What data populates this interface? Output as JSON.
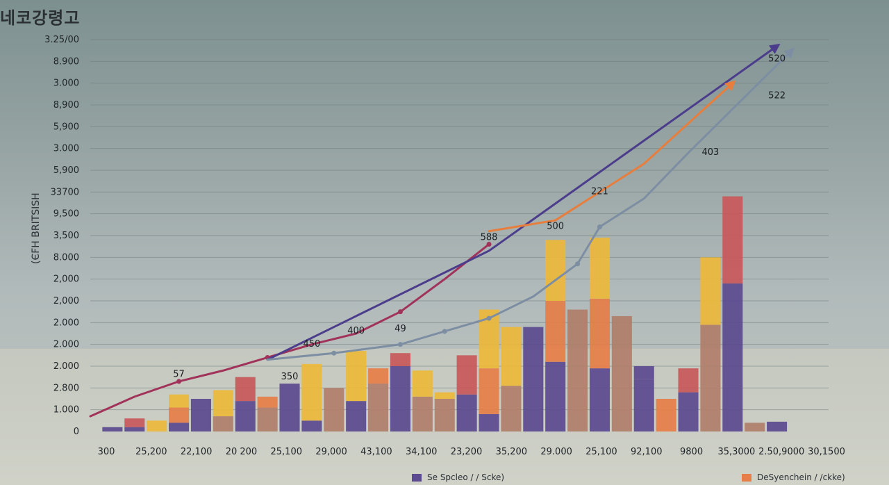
{
  "chart_data": {
    "type": "bar",
    "title": "네코강령고",
    "xlabel": "",
    "ylabel": "(ЄFH BRITSISH",
    "y_tick_labels": [
      "0",
      "1.000",
      "2.800",
      "2.000",
      "2.000",
      "2.000",
      "2,000",
      "2,000",
      "8.000",
      "3,500",
      "9,500",
      "33700",
      "5,900",
      "3.000",
      "5,900",
      "8,900",
      "3.000",
      "8.900",
      "3.25/00"
    ],
    "x_tick_labels": [
      "300",
      "25,200",
      "22,100",
      "20 200",
      "25,100",
      "29,000",
      "43,100",
      "34,100",
      "23,200",
      "35,200",
      "29.000",
      "25,100",
      "92,100",
      "9800",
      "35,3000",
      "2.50,9000",
      "30,1500"
    ],
    "ylim": [
      0,
      18
    ],
    "grid": true,
    "colors": {
      "purple": "#5b4a8f",
      "red": "#c8585a",
      "yellow": "#ecb83a",
      "orange": "#e57e48",
      "tan": "#b07e6a",
      "line_maroon": "#a13259",
      "line_indigo": "#4b3d8c",
      "line_orange": "#e77e3e",
      "line_grey": "#7d8ea3"
    },
    "bars": [
      {
        "x": 0.45,
        "segments": [
          {
            "c": "purple",
            "v": 0.2
          }
        ]
      },
      {
        "x": 0.9,
        "segments": [
          {
            "c": "purple",
            "v": 0.2
          },
          {
            "c": "red",
            "v": 0.4
          }
        ]
      },
      {
        "x": 1.35,
        "segments": [
          {
            "c": "yellow",
            "v": 0.5
          }
        ]
      },
      {
        "x": 1.8,
        "segments": [
          {
            "c": "purple",
            "v": 0.4
          },
          {
            "c": "orange",
            "v": 0.7
          },
          {
            "c": "yellow",
            "v": 0.6
          }
        ]
      },
      {
        "x": 2.25,
        "segments": [
          {
            "c": "purple",
            "v": 1.5
          }
        ]
      },
      {
        "x": 2.7,
        "segments": [
          {
            "c": "tan",
            "v": 0.7
          },
          {
            "c": "yellow",
            "v": 1.2
          }
        ]
      },
      {
        "x": 3.15,
        "segments": [
          {
            "c": "purple",
            "v": 1.4
          },
          {
            "c": "red",
            "v": 1.1
          }
        ]
      },
      {
        "x": 3.6,
        "segments": [
          {
            "c": "tan",
            "v": 1.1
          },
          {
            "c": "orange",
            "v": 0.5
          }
        ]
      },
      {
        "x": 4.05,
        "segments": [
          {
            "c": "purple",
            "v": 2.2
          }
        ]
      },
      {
        "x": 4.5,
        "segments": [
          {
            "c": "purple",
            "v": 0.5
          },
          {
            "c": "yellow",
            "v": 2.6
          }
        ]
      },
      {
        "x": 4.95,
        "segments": [
          {
            "c": "tan",
            "v": 2.0
          }
        ]
      },
      {
        "x": 5.4,
        "segments": [
          {
            "c": "purple",
            "v": 1.4
          },
          {
            "c": "yellow",
            "v": 2.3
          }
        ]
      },
      {
        "x": 5.85,
        "segments": [
          {
            "c": "tan",
            "v": 2.2
          },
          {
            "c": "orange",
            "v": 0.7
          }
        ]
      },
      {
        "x": 6.3,
        "segments": [
          {
            "c": "purple",
            "v": 3.0
          },
          {
            "c": "red",
            "v": 0.6
          }
        ]
      },
      {
        "x": 6.75,
        "segments": [
          {
            "c": "tan",
            "v": 1.6
          },
          {
            "c": "yellow",
            "v": 1.2
          }
        ]
      },
      {
        "x": 7.2,
        "segments": [
          {
            "c": "tan",
            "v": 1.5
          },
          {
            "c": "yellow",
            "v": 0.3
          }
        ]
      },
      {
        "x": 7.65,
        "segments": [
          {
            "c": "purple",
            "v": 1.7
          },
          {
            "c": "red",
            "v": 1.8
          }
        ]
      },
      {
        "x": 8.1,
        "segments": [
          {
            "c": "purple",
            "v": 0.8
          },
          {
            "c": "orange",
            "v": 2.1
          },
          {
            "c": "yellow",
            "v": 2.7
          }
        ]
      },
      {
        "x": 8.55,
        "segments": [
          {
            "c": "tan",
            "v": 2.1
          },
          {
            "c": "yellow",
            "v": 2.7
          }
        ]
      },
      {
        "x": 9.0,
        "segments": [
          {
            "c": "purple",
            "v": 4.8
          }
        ]
      },
      {
        "x": 9.45,
        "segments": [
          {
            "c": "purple",
            "v": 3.2
          },
          {
            "c": "orange",
            "v": 2.8
          },
          {
            "c": "yellow",
            "v": 2.8
          }
        ]
      },
      {
        "x": 9.9,
        "segments": [
          {
            "c": "tan",
            "v": 5.6
          }
        ]
      },
      {
        "x": 10.35,
        "segments": [
          {
            "c": "purple",
            "v": 2.9
          },
          {
            "c": "orange",
            "v": 3.2
          },
          {
            "c": "yellow",
            "v": 2.8
          }
        ]
      },
      {
        "x": 10.8,
        "segments": [
          {
            "c": "tan",
            "v": 5.3
          }
        ]
      },
      {
        "x": 11.25,
        "segments": [
          {
            "c": "purple",
            "v": 2.4
          },
          {
            "c": "purple",
            "v": 0.6
          }
        ]
      },
      {
        "x": 11.7,
        "segments": [
          {
            "c": "orange",
            "v": 1.5
          }
        ]
      },
      {
        "x": 12.15,
        "segments": [
          {
            "c": "purple",
            "v": 1.8
          },
          {
            "c": "red",
            "v": 1.1
          }
        ]
      },
      {
        "x": 12.6,
        "segments": [
          {
            "c": "tan",
            "v": 4.9
          },
          {
            "c": "yellow",
            "v": 3.1
          }
        ]
      },
      {
        "x": 13.05,
        "segments": [
          {
            "c": "purple",
            "v": 6.8
          },
          {
            "c": "red",
            "v": 4.0
          }
        ]
      },
      {
        "x": 13.5,
        "segments": [
          {
            "c": "tan",
            "v": 0.4
          }
        ]
      },
      {
        "x": 13.95,
        "segments": [
          {
            "c": "purple",
            "v": 0.45
          }
        ]
      }
    ],
    "series": [
      {
        "color": "line_maroon",
        "arrow": false,
        "x": [
          0,
          0.9,
          1.8,
          2.7,
          3.6,
          4.5,
          5.4,
          6.3,
          7.2,
          8.1
        ],
        "y": [
          0.7,
          1.6,
          2.3,
          2.8,
          3.4,
          4.0,
          4.5,
          5.5,
          7.0,
          8.6
        ],
        "markers": [
          1.8,
          3.6,
          6.3,
          8.1
        ]
      },
      {
        "color": "line_indigo",
        "arrow": true,
        "x": [
          3.6,
          8.1,
          13.95
        ],
        "y": [
          3.3,
          8.3,
          17.7
        ],
        "markers": []
      },
      {
        "color": "line_orange",
        "arrow": true,
        "x": [
          8.1,
          9.45,
          10.35,
          11.25,
          13.05
        ],
        "y": [
          9.2,
          9.7,
          11.0,
          12.3,
          16.0
        ],
        "markers": []
      },
      {
        "color": "line_grey",
        "arrow": true,
        "x": [
          3.6,
          4.95,
          6.3,
          7.2,
          8.1,
          9.0,
          9.9,
          10.35,
          11.25,
          12.15,
          14.25
        ],
        "y": [
          3.3,
          3.6,
          4.0,
          4.6,
          5.2,
          6.2,
          7.7,
          9.4,
          10.7,
          12.8,
          17.5
        ],
        "markers": [
          4.95,
          6.3,
          7.2,
          8.1,
          9.9,
          10.35
        ]
      }
    ],
    "annotations": [
      {
        "x": 1.8,
        "y": 2.5,
        "text": "57"
      },
      {
        "x": 4.05,
        "y": 2.4,
        "text": "350"
      },
      {
        "x": 4.5,
        "y": 3.9,
        "text": "450"
      },
      {
        "x": 5.4,
        "y": 4.5,
        "text": "400"
      },
      {
        "x": 6.3,
        "y": 4.6,
        "text": "49"
      },
      {
        "x": 8.1,
        "y": 8.8,
        "text": "588"
      },
      {
        "x": 9.45,
        "y": 9.3,
        "text": "500"
      },
      {
        "x": 10.35,
        "y": 10.9,
        "text": "221"
      },
      {
        "x": 12.6,
        "y": 12.7,
        "text": "403"
      },
      {
        "x": 13.95,
        "y": 15.3,
        "text": "522"
      },
      {
        "x": 13.95,
        "y": 17.0,
        "text": "520"
      }
    ],
    "legend": [
      {
        "label": "Se Spcleo / / Scke)",
        "color": "purple"
      },
      {
        "label": "DeSyenchein / /ckke)",
        "color": "orange"
      }
    ],
    "legend_position": "bottom"
  }
}
